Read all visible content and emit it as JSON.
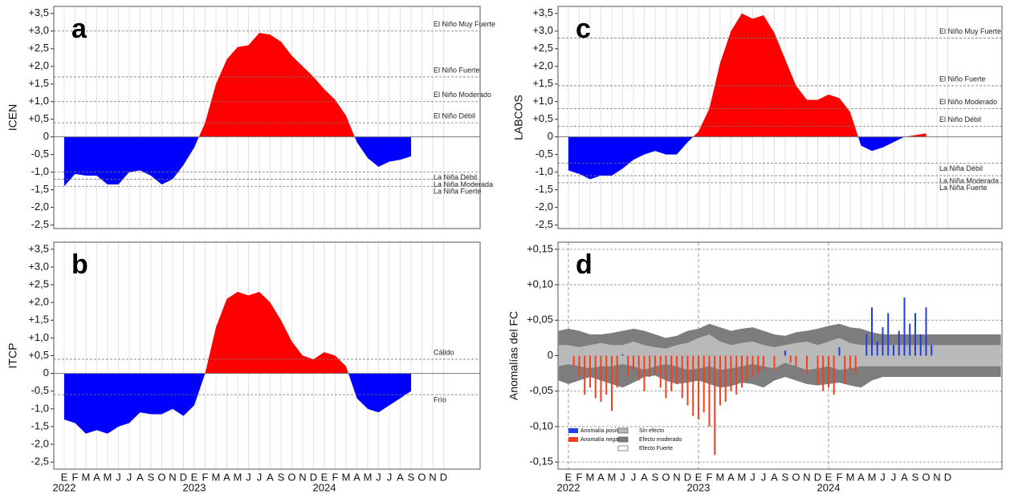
{
  "chart_data": [
    {
      "type": "area",
      "label": "a",
      "y_label": "ICEN",
      "xlim": [
        -0.96,
        38.37
      ],
      "ylim": [
        -2.6,
        3.7
      ],
      "yticks": [
        {
          "value": 3.5,
          "label": "+3,5"
        },
        {
          "value": 3,
          "label": "+3,0"
        },
        {
          "value": 2.5,
          "label": "+2,5"
        },
        {
          "value": 2,
          "label": "+2,0"
        },
        {
          "value": 1.5,
          "label": "+1,5"
        },
        {
          "value": 1,
          "label": "+1,0"
        },
        {
          "value": 0.5,
          "label": "+0,5"
        },
        0,
        {
          "value": -0.5,
          "label": "-0,5"
        },
        {
          "value": -1,
          "label": "-1,0"
        },
        {
          "value": -1.5,
          "label": "-1,5"
        },
        {
          "value": -2,
          "label": "-2,0"
        },
        {
          "value": -2.5,
          "label": "-2,5"
        }
      ],
      "positive_color": "#ff0000",
      "negative_color": "#0000ff",
      "values": [
        -1.4,
        -1.05,
        -1.1,
        -1.1,
        -1.35,
        -1.35,
        -1.0,
        -0.95,
        -1.1,
        -1.35,
        -1.2,
        -0.8,
        -0.3,
        0.4,
        1.5,
        2.2,
        2.55,
        2.6,
        2.95,
        2.9,
        2.7,
        2.3,
        2.0,
        1.7,
        1.35,
        1.05,
        0.6,
        -0.15,
        -0.6,
        -0.85,
        -0.7,
        -0.65,
        -0.55,
        null,
        null,
        null
      ],
      "thresholds": [
        {
          "label": "El Niño Muy Fuerte",
          "value": 3.0
        },
        {
          "label": "El Niño Fuerte",
          "value": 1.7
        },
        {
          "label": "El Niño Moderado",
          "value": 1.0
        },
        {
          "label": "El Niño Débil",
          "value": 0.4
        },
        {
          "label": "La Niña Débil",
          "value": -1.0
        },
        {
          "label": "La Niña Moderada",
          "value": -1.2
        },
        {
          "label": "La Niña Fuerte",
          "value": -1.4
        }
      ]
    },
    {
      "type": "area",
      "label": "b",
      "y_label": "ITCP",
      "xlim": [
        -0.96,
        38.37
      ],
      "ylim": [
        -2.7,
        3.7
      ],
      "yticks": [
        {
          "value": 3.5,
          "label": "+3,5"
        },
        {
          "value": 3,
          "label": "+3,0"
        },
        {
          "value": 2.5,
          "label": "+2,5"
        },
        {
          "value": 2,
          "label": "+2,0"
        },
        {
          "value": 1.5,
          "label": "+1,5"
        },
        {
          "value": 1,
          "label": "+1,0"
        },
        {
          "value": 0.5,
          "label": "+0,5"
        },
        0,
        {
          "value": -0.5,
          "label": "-0,5"
        },
        {
          "value": -1,
          "label": "-1,0"
        },
        {
          "value": -1.5,
          "label": "-1,5"
        },
        {
          "value": -2,
          "label": "-2,0"
        },
        {
          "value": -2.5,
          "label": "-2,5"
        }
      ],
      "positive_color": "#ff0000",
      "negative_color": "#0000ff",
      "categories": [
        "E",
        "F",
        "M",
        "A",
        "M",
        "J",
        "J",
        "A",
        "S",
        "O",
        "N",
        "D",
        "E",
        "F",
        "M",
        "A",
        "M",
        "J",
        "J",
        "A",
        "S",
        "O",
        "N",
        "D",
        "E",
        "F",
        "M",
        "A",
        "M",
        "J",
        "J",
        "A",
        "S",
        "O",
        "N",
        "D"
      ],
      "years": [
        "2022",
        "2023",
        "2024"
      ],
      "values": [
        -1.3,
        -1.4,
        -1.7,
        -1.6,
        -1.7,
        -1.5,
        -1.4,
        -1.1,
        -1.15,
        -1.15,
        -1.0,
        -1.2,
        -0.9,
        0,
        1.3,
        2.1,
        2.3,
        2.2,
        2.3,
        2.0,
        1.5,
        0.9,
        0.5,
        0.4,
        0.6,
        0.5,
        0.2,
        -0.7,
        -1.0,
        -1.1,
        -0.9,
        -0.7,
        -0.5,
        null,
        null,
        null
      ],
      "thresholds": [
        {
          "label": "Cálido",
          "value": 0.4
        },
        {
          "label": "Frío",
          "value": -0.6
        }
      ]
    },
    {
      "type": "area",
      "label": "c",
      "y_label": "LABCOS",
      "xlim": [
        -0.96,
        40.0
      ],
      "ylim": [
        -2.6,
        3.7
      ],
      "yticks": [
        {
          "value": 3.5,
          "label": "+3,5"
        },
        {
          "value": 3,
          "label": "+3,0"
        },
        {
          "value": 2.5,
          "label": "+2,5"
        },
        {
          "value": 2,
          "label": "+2,0"
        },
        {
          "value": 1.5,
          "label": "+1,5"
        },
        {
          "value": 1,
          "label": "+1,0"
        },
        {
          "value": 0.5,
          "label": "+0,5"
        },
        0,
        {
          "value": -0.5,
          "label": "-0,5"
        },
        {
          "value": -1,
          "label": "-1,0"
        },
        {
          "value": -1.5,
          "label": "-1,5"
        },
        {
          "value": -2,
          "label": "-2,0"
        },
        {
          "value": -2.5,
          "label": "-2,5"
        }
      ],
      "positive_color": "#ff0000",
      "negative_color": "#0000ff",
      "values": [
        -0.95,
        -1.05,
        -1.2,
        -1.1,
        -1.1,
        -0.9,
        -0.65,
        -0.5,
        -0.4,
        -0.5,
        -0.5,
        -0.15,
        0.15,
        0.8,
        2.1,
        3.0,
        3.5,
        3.35,
        3.45,
        2.95,
        2.2,
        1.45,
        1.05,
        1.05,
        1.2,
        1.1,
        0.7,
        -0.25,
        -0.4,
        -0.3,
        -0.15,
        0,
        0.05,
        0.1,
        null,
        null
      ],
      "thresholds": [
        {
          "label": "El Niño Muy Fuerte",
          "value": 2.8
        },
        {
          "label": "El Niño Fuerte",
          "value": 1.45
        },
        {
          "label": "El Niño Moderado",
          "value": 0.8
        },
        {
          "label": "El Niño Débil",
          "value": 0.3
        },
        {
          "label": "La Niña Débil",
          "value": -0.75
        },
        {
          "label": "La Niña Moderada",
          "value": -1.1
        },
        {
          "label": "La Niña Fuerte",
          "value": -1.3
        }
      ]
    },
    {
      "type": "bar",
      "label": "d",
      "y_label": "Anomalías del FC",
      "xlim": [
        -0.96,
        40.0
      ],
      "ylim": [
        -0.16,
        0.16
      ],
      "grid": true,
      "yticks": [
        {
          "value": 0.15,
          "label": "+0,15"
        },
        {
          "value": 0.1,
          "label": "+0,10"
        },
        {
          "value": 0.05,
          "label": "+0,05"
        },
        0,
        {
          "value": -0.05,
          "label": "-0,05"
        },
        {
          "value": -0.1,
          "label": "-0,10"
        },
        {
          "value": -0.15,
          "label": "-0,15"
        }
      ],
      "categories": [
        "E",
        "F",
        "M",
        "A",
        "M",
        "J",
        "J",
        "A",
        "S",
        "O",
        "N",
        "D",
        "E",
        "F",
        "M",
        "A",
        "M",
        "J",
        "J",
        "A",
        "S",
        "O",
        "N",
        "D",
        "E",
        "F",
        "M",
        "A",
        "M",
        "J",
        "J",
        "A",
        "S",
        "O",
        "N",
        "D"
      ],
      "years": [
        "2022",
        "2023",
        "2024"
      ],
      "series": [
        {
          "name": "Anomalía positiva",
          "color": "#1f3fe0",
          "x": [
            5,
            20,
            25,
            27.5,
            28,
            28.5,
            29,
            29.5,
            30,
            30.5,
            31,
            31.5,
            32,
            32.5,
            33,
            33.5
          ],
          "values": [
            0.002,
            0.007,
            0.012,
            0.03,
            0.068,
            0.02,
            0.04,
            0.06,
            0.015,
            0.035,
            0.082,
            0.045,
            0.06,
            0.03,
            0.068,
            0.015
          ]
        },
        {
          "name": "Anomalía negativa",
          "color": "#f2401f",
          "x": [
            0.5,
            1,
            1.5,
            2,
            2.5,
            3,
            3.5,
            4,
            4.5,
            5.5,
            6,
            6.5,
            7,
            7.5,
            8,
            8.5,
            9,
            9.5,
            10,
            10.5,
            11,
            11.5,
            12,
            12.5,
            13,
            13.5,
            14,
            14.5,
            15,
            15.5,
            16,
            16.5,
            17,
            17.5,
            18,
            19,
            20.5,
            21,
            22,
            23,
            23.5,
            24,
            24.5,
            25.5,
            26,
            26.5
          ],
          "values": [
            -0.015,
            -0.03,
            -0.055,
            -0.045,
            -0.06,
            -0.065,
            -0.055,
            -0.078,
            -0.045,
            -0.03,
            -0.02,
            -0.035,
            -0.05,
            -0.03,
            -0.025,
            -0.045,
            -0.06,
            -0.05,
            -0.04,
            -0.06,
            -0.07,
            -0.085,
            -0.09,
            -0.08,
            -0.1,
            -0.14,
            -0.07,
            -0.065,
            -0.05,
            -0.055,
            -0.045,
            -0.035,
            -0.03,
            -0.025,
            -0.02,
            -0.02,
            -0.01,
            -0.015,
            -0.025,
            -0.04,
            -0.05,
            -0.045,
            -0.055,
            -0.04,
            -0.02,
            -0.025
          ]
        }
      ],
      "band_legend": [
        {
          "name": "Sin efecto",
          "color": "#b9b9b9"
        },
        {
          "name": "Efecto moderado",
          "color": "#7d7d7d"
        },
        {
          "name": "Efecto Fuerte",
          "color": "#ffffff"
        }
      ],
      "bands": {
        "x": [
          -0.9,
          0,
          1,
          2,
          3,
          4,
          5,
          6,
          7,
          8,
          9,
          10,
          11,
          12,
          13,
          14,
          15,
          16,
          17,
          18,
          19,
          20,
          21,
          22,
          23,
          24,
          25,
          26,
          27,
          28,
          29,
          39.9
        ],
        "moderate_upper": [
          0.035,
          0.038,
          0.035,
          0.03,
          0.03,
          0.032,
          0.035,
          0.038,
          0.035,
          0.03,
          0.025,
          0.028,
          0.035,
          0.038,
          0.045,
          0.04,
          0.035,
          0.038,
          0.04,
          0.035,
          0.03,
          0.028,
          0.033,
          0.035,
          0.038,
          0.042,
          0.045,
          0.04,
          0.038,
          0.033,
          0.03,
          0.03
        ],
        "sin_upper": [
          0.015,
          0.015,
          0.012,
          0.015,
          0.018,
          0.015,
          0.015,
          0.02,
          0.015,
          0.012,
          0.01,
          0.015,
          0.018,
          0.025,
          0.03,
          0.02,
          0.015,
          0.018,
          0.02,
          0.015,
          0.012,
          0.015,
          0.018,
          0.02,
          0.015,
          0.02,
          0.025,
          0.018,
          0.015,
          0.015,
          0.015,
          0.015
        ],
        "sin_lower": [
          -0.015,
          -0.012,
          -0.015,
          -0.018,
          -0.015,
          -0.015,
          -0.012,
          -0.015,
          -0.02,
          -0.015,
          -0.012,
          -0.015,
          -0.02,
          -0.018,
          -0.015,
          -0.02,
          -0.018,
          -0.015,
          -0.012,
          -0.015,
          -0.018,
          -0.01,
          -0.015,
          -0.02,
          -0.018,
          -0.015,
          -0.02,
          -0.018,
          -0.015,
          -0.015,
          -0.015,
          -0.015
        ],
        "moderate_lower": [
          -0.035,
          -0.04,
          -0.035,
          -0.03,
          -0.035,
          -0.04,
          -0.045,
          -0.038,
          -0.03,
          -0.028,
          -0.035,
          -0.04,
          -0.038,
          -0.035,
          -0.04,
          -0.045,
          -0.043,
          -0.038,
          -0.04,
          -0.045,
          -0.035,
          -0.03,
          -0.035,
          -0.04,
          -0.042,
          -0.04,
          -0.038,
          -0.042,
          -0.045,
          -0.035,
          -0.03,
          -0.03
        ]
      }
    }
  ]
}
